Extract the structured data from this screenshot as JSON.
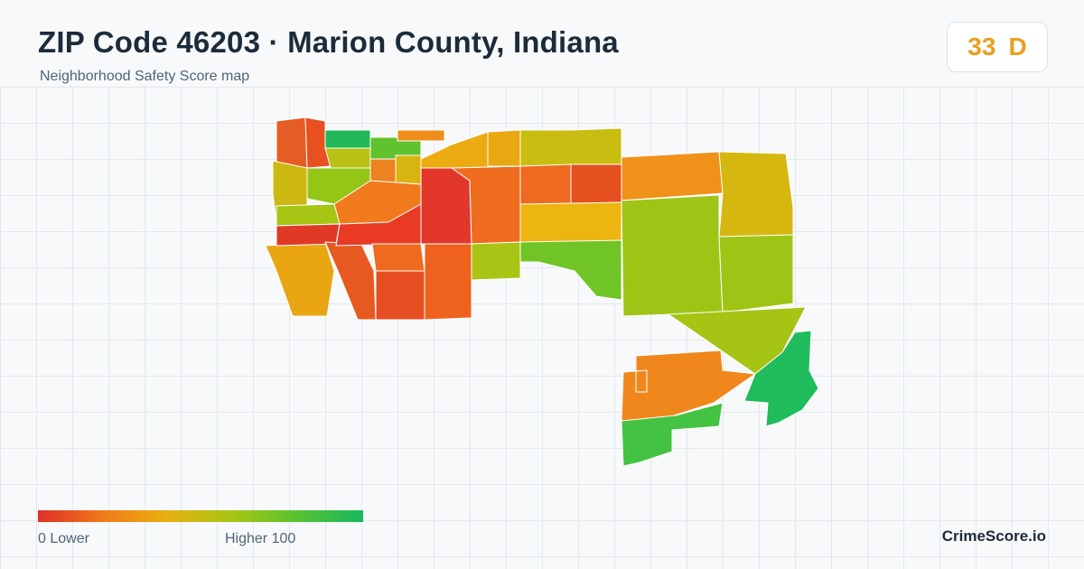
{
  "header": {
    "title": "ZIP Code 46203 · Marion County, Indiana",
    "subtitle": "Neighborhood Safety Score map"
  },
  "score_badge": {
    "score": "33",
    "grade": "D",
    "color": "#e8a020"
  },
  "map": {
    "region": "ZIP Code 46203",
    "tiles": [
      {
        "id": "nw-a",
        "color": "#e55d24"
      },
      {
        "id": "nw-b",
        "color": "#e8501f"
      },
      {
        "id": "nw-c",
        "color": "#22b85a"
      },
      {
        "id": "nw-d",
        "color": "#5fc22e"
      },
      {
        "id": "nw-e",
        "color": "#f08c1a"
      },
      {
        "id": "nw-f",
        "color": "#cdb812"
      },
      {
        "id": "nw-g",
        "color": "#b9c214"
      },
      {
        "id": "nw-h",
        "color": "#95c616"
      },
      {
        "id": "nw-i",
        "color": "#ec8320"
      },
      {
        "id": "nw-j",
        "color": "#d8b410"
      },
      {
        "id": "nw-k",
        "color": "#f07a1c"
      },
      {
        "id": "nw-l",
        "color": "#a6c515"
      },
      {
        "id": "nw-m",
        "color": "#e9a612"
      },
      {
        "id": "c-a",
        "color": "#e03a26"
      },
      {
        "id": "c-b",
        "color": "#e65a22"
      },
      {
        "id": "c-c",
        "color": "#e93a26"
      },
      {
        "id": "c-d",
        "color": "#ed6a1e"
      },
      {
        "id": "c-e",
        "color": "#e2372a"
      },
      {
        "id": "c-f",
        "color": "#c8bd10"
      },
      {
        "id": "c-g",
        "color": "#ef6c1f"
      },
      {
        "id": "c-h",
        "color": "#e64e22"
      },
      {
        "id": "c-i",
        "color": "#ee621e"
      },
      {
        "id": "c-j",
        "color": "#ecab10"
      },
      {
        "id": "c-k",
        "color": "#e7a812"
      },
      {
        "id": "c-l",
        "color": "#e4501f"
      },
      {
        "id": "c-m",
        "color": "#ee6a1f"
      },
      {
        "id": "c-n",
        "color": "#edb510"
      },
      {
        "id": "c-o",
        "color": "#a9c414"
      },
      {
        "id": "c-p",
        "color": "#70c425"
      },
      {
        "id": "e-a",
        "color": "#f0911a"
      },
      {
        "id": "e-b",
        "color": "#d6b70f"
      },
      {
        "id": "e-c",
        "color": "#9ec516"
      },
      {
        "id": "e-d",
        "color": "#9ec516"
      },
      {
        "id": "e-e",
        "color": "#a5c414"
      },
      {
        "id": "se-a",
        "color": "#f0871c"
      },
      {
        "id": "se-b",
        "color": "#44c242"
      },
      {
        "id": "se-c",
        "color": "#20bb5a"
      }
    ]
  },
  "legend": {
    "low_label": "0  Lower",
    "high_label": "Higher  100"
  },
  "brand": {
    "name": "CrimeScore.io"
  }
}
